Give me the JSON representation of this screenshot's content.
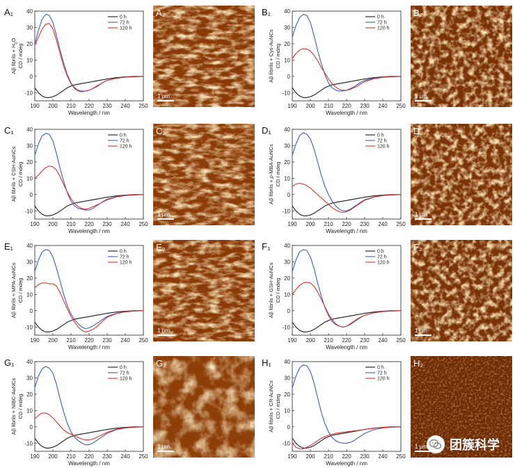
{
  "figure": {
    "xlabel": "Wavelength / nm",
    "ylabel_suffix": "CD / mdeg",
    "x_ticks": [
      190,
      200,
      210,
      220,
      230,
      240,
      250
    ],
    "y_ticks": [
      -10,
      0,
      10,
      20,
      30,
      40
    ],
    "legend": [
      "0 h",
      "72 h",
      "120 h"
    ],
    "colors": {
      "0h": "#1a1a1a",
      "72h": "#3d5fb0",
      "120h": "#e03030"
    },
    "scale_bar": "1 μm"
  },
  "chart_data": [
    {
      "type": "line",
      "panel": "A",
      "letter_cd": "A₁",
      "letter_afm": "A₂",
      "ylabel_pre": "Aβ fibrils + H",
      "ylabel_sub": "2",
      "ylabel_post": "O",
      "xlim": [
        190,
        250
      ],
      "ylim": [
        -15,
        40
      ],
      "x": [
        190,
        192,
        194,
        196,
        198,
        200,
        202,
        204,
        206,
        208,
        210,
        212,
        214,
        216,
        218,
        220,
        222,
        224,
        226,
        228,
        230,
        235,
        240,
        245,
        250
      ],
      "series": [
        {
          "name": "0 h",
          "values": [
            -7,
            -10,
            -12,
            -13,
            -13,
            -12.5,
            -11.5,
            -10,
            -8.5,
            -7,
            -6,
            -5.2,
            -4.8,
            -4.4,
            -4,
            -3.6,
            -3.2,
            -2.8,
            -2.4,
            -2,
            -1.6,
            -0.8,
            -0.3,
            0,
            0
          ]
        },
        {
          "name": "72 h",
          "values": [
            20,
            28,
            35,
            38,
            37.5,
            33,
            25,
            16,
            8,
            1,
            -4,
            -7,
            -8.5,
            -9,
            -9,
            -8.5,
            -7.5,
            -6.5,
            -5,
            -3.5,
            -2.5,
            -1.2,
            -0.5,
            -0.2,
            0
          ]
        },
        {
          "name": "120 h",
          "values": [
            19,
            24,
            29,
            32,
            32.5,
            29,
            22,
            14,
            6,
            0,
            -4.5,
            -7.5,
            -9,
            -9.5,
            -9,
            -8.5,
            -7.5,
            -6,
            -4.8,
            -3.5,
            -2.5,
            -1.2,
            -0.5,
            -0.2,
            0
          ]
        }
      ]
    },
    {
      "type": "line",
      "panel": "B",
      "letter_cd": "B₁",
      "letter_afm": "B₂",
      "ylabel_pre": "Aβ fibrils + Cys-AuNCs",
      "ylabel_sub": "",
      "ylabel_post": "",
      "xlim": [
        190,
        250
      ],
      "ylim": [
        -15,
        40
      ],
      "x": [
        190,
        192,
        194,
        196,
        198,
        200,
        202,
        204,
        206,
        208,
        210,
        212,
        214,
        216,
        218,
        220,
        222,
        224,
        226,
        228,
        230,
        235,
        240,
        245,
        250
      ],
      "series": [
        {
          "name": "0 h",
          "values": [
            -7,
            -10,
            -12,
            -13,
            -13,
            -12.5,
            -11.5,
            -10,
            -8.5,
            -7,
            -6,
            -5.2,
            -4.8,
            -4.4,
            -4,
            -3.6,
            -3.2,
            -2.8,
            -2.4,
            -2,
            -1.6,
            -0.8,
            -0.3,
            0,
            0
          ]
        },
        {
          "name": "72 h",
          "values": [
            24,
            31,
            36,
            38,
            37.5,
            33,
            25,
            16,
            8,
            1,
            -4,
            -7,
            -8.5,
            -9,
            -9,
            -8.5,
            -7.5,
            -6.5,
            -5,
            -3.5,
            -2.5,
            -1.2,
            -0.5,
            -0.2,
            0
          ]
        },
        {
          "name": "120 h",
          "values": [
            11,
            14,
            16,
            17,
            16.8,
            15.5,
            13,
            9.5,
            5.5,
            2,
            -1.5,
            -4.5,
            -6.5,
            -8,
            -8.5,
            -8.5,
            -8,
            -7,
            -6,
            -4.5,
            -3.2,
            -1.5,
            -0.6,
            -0.2,
            0
          ]
        }
      ]
    },
    {
      "type": "line",
      "panel": "C",
      "letter_cd": "C₁",
      "letter_afm": "C₂",
      "ylabel_pre": "Aβ fibrils + CSH-AuNCs",
      "ylabel_sub": "",
      "ylabel_post": "",
      "xlim": [
        190,
        250
      ],
      "ylim": [
        -15,
        40
      ],
      "x": [
        190,
        192,
        194,
        196,
        198,
        200,
        202,
        204,
        206,
        208,
        210,
        212,
        214,
        216,
        218,
        220,
        222,
        224,
        226,
        228,
        230,
        235,
        240,
        245,
        250
      ],
      "series": [
        {
          "name": "0 h",
          "values": [
            -7,
            -10,
            -12,
            -13,
            -13,
            -12.5,
            -11.5,
            -10,
            -8.5,
            -7,
            -6,
            -5.2,
            -4.8,
            -4.4,
            -4,
            -3.6,
            -3.2,
            -2.8,
            -2.4,
            -2,
            -1.6,
            -0.8,
            -0.3,
            0,
            0
          ]
        },
        {
          "name": "72 h",
          "values": [
            24,
            31,
            36,
            37.5,
            37,
            33,
            25,
            16,
            8,
            1,
            -4,
            -7,
            -8.5,
            -9,
            -9.5,
            -9.5,
            -8.5,
            -7,
            -5.5,
            -4,
            -2.8,
            -1.3,
            -0.5,
            -0.2,
            0
          ]
        },
        {
          "name": "120 h",
          "values": [
            10,
            12,
            14.5,
            16.5,
            17.5,
            17,
            15,
            11,
            6,
            1.5,
            -2.5,
            -5.5,
            -7.5,
            -8.5,
            -9,
            -8.5,
            -7.5,
            -6.5,
            -5.5,
            -4.3,
            -3.2,
            -1.5,
            -0.6,
            -0.2,
            0
          ]
        }
      ]
    },
    {
      "type": "line",
      "panel": "D",
      "letter_cd": "D₁",
      "letter_afm": "D₂",
      "ylabel_pre": "Aβ fibrils + ",
      "ylabel_italic": "p",
      "ylabel_post": "-MBA-AuNCs",
      "ylabel_sub": "",
      "xlim": [
        190,
        250
      ],
      "ylim": [
        -15,
        40
      ],
      "x": [
        190,
        192,
        194,
        196,
        198,
        200,
        202,
        204,
        206,
        208,
        210,
        212,
        214,
        216,
        218,
        220,
        222,
        224,
        226,
        228,
        230,
        235,
        240,
        245,
        250
      ],
      "series": [
        {
          "name": "0 h",
          "values": [
            -7,
            -10,
            -12,
            -13,
            -13,
            -12.5,
            -11.5,
            -10,
            -8.5,
            -7,
            -6,
            -5.2,
            -4.8,
            -4.4,
            -4,
            -3.6,
            -3.2,
            -2.8,
            -2.4,
            -2,
            -1.6,
            -0.8,
            -0.3,
            0,
            0
          ]
        },
        {
          "name": "72 h",
          "values": [
            24,
            31,
            36,
            38,
            37,
            34,
            28,
            20,
            12,
            5,
            0,
            -4,
            -7,
            -9,
            -10,
            -10,
            -9,
            -7.5,
            -6,
            -4.5,
            -3.2,
            -1.5,
            -0.6,
            -0.2,
            0
          ]
        },
        {
          "name": "120 h",
          "values": [
            5,
            6.5,
            7,
            6.5,
            5.5,
            4,
            2,
            0,
            -2,
            -4,
            -6,
            -8,
            -9.5,
            -10.5,
            -11,
            -10.5,
            -9.5,
            -8,
            -6.5,
            -5,
            -3.5,
            -1.6,
            -0.6,
            -0.2,
            0
          ]
        }
      ]
    },
    {
      "type": "line",
      "panel": "E",
      "letter_cd": "E₁",
      "letter_afm": "E₂",
      "ylabel_pre": "Aβ fibrils + MPA-AuNCs",
      "ylabel_sub": "",
      "ylabel_post": "",
      "xlim": [
        190,
        250
      ],
      "ylim": [
        -15,
        40
      ],
      "x": [
        190,
        192,
        194,
        196,
        198,
        200,
        202,
        204,
        206,
        208,
        210,
        212,
        214,
        216,
        218,
        220,
        222,
        224,
        226,
        228,
        230,
        235,
        240,
        245,
        250
      ],
      "series": [
        {
          "name": "0 h",
          "values": [
            -7,
            -10,
            -12,
            -13,
            -13,
            -12.5,
            -11.5,
            -10,
            -8.5,
            -7,
            -6,
            -5.2,
            -4.8,
            -4.4,
            -4,
            -3.6,
            -3.2,
            -2.8,
            -2.4,
            -2,
            -1.6,
            -0.8,
            -0.3,
            0,
            0
          ]
        },
        {
          "name": "72 h",
          "values": [
            24,
            31,
            36,
            37.5,
            37,
            33,
            26,
            18,
            10,
            3,
            -2,
            -5.5,
            -8,
            -10,
            -11,
            -10.5,
            -9.5,
            -8,
            -6.5,
            -5,
            -3.5,
            -1.6,
            -0.6,
            -0.2,
            0
          ]
        },
        {
          "name": "120 h",
          "values": [
            14,
            16,
            17,
            17,
            16.5,
            16.5,
            15,
            11,
            6,
            1,
            -3.5,
            -7,
            -10,
            -12,
            -13,
            -12.5,
            -11.5,
            -10,
            -8,
            -6,
            -4,
            -1.8,
            -0.7,
            -0.2,
            0
          ]
        }
      ]
    },
    {
      "type": "line",
      "panel": "F",
      "letter_cd": "F₁",
      "letter_afm": "F₂",
      "ylabel_pre": "Aβ fibrils + GSH-AuNCs",
      "ylabel_sub": "",
      "ylabel_post": "",
      "xlim": [
        190,
        250
      ],
      "ylim": [
        -15,
        40
      ],
      "x": [
        190,
        192,
        194,
        196,
        198,
        200,
        202,
        204,
        206,
        208,
        210,
        212,
        214,
        216,
        218,
        220,
        222,
        224,
        226,
        228,
        230,
        235,
        240,
        245,
        250
      ],
      "series": [
        {
          "name": "0 h",
          "values": [
            -7,
            -10,
            -12,
            -13,
            -13,
            -12.5,
            -11.5,
            -10,
            -8.5,
            -7,
            -6,
            -5.2,
            -4.8,
            -4.4,
            -4,
            -3.6,
            -3.2,
            -2.8,
            -2.4,
            -2,
            -1.6,
            -0.8,
            -0.3,
            0,
            0
          ]
        },
        {
          "name": "72 h",
          "values": [
            24,
            31,
            36,
            37.5,
            37,
            33,
            26,
            17,
            9,
            2,
            -3,
            -6.5,
            -8.5,
            -9.5,
            -10,
            -9.5,
            -8.5,
            -7,
            -5.5,
            -4,
            -2.8,
            -1.3,
            -0.5,
            -0.2,
            0
          ]
        },
        {
          "name": "120 h",
          "values": [
            10,
            13,
            15.5,
            17,
            17.5,
            17,
            15,
            11.5,
            7,
            2.5,
            -2,
            -5.5,
            -8,
            -9.5,
            -10,
            -9.5,
            -8,
            -6.5,
            -5,
            -3.8,
            -2.8,
            -1.3,
            -0.5,
            -0.2,
            0
          ]
        }
      ]
    },
    {
      "type": "line",
      "panel": "G",
      "letter_cd": "G₁",
      "letter_afm": "G₂",
      "ylabel_pre": "Aβ fibrils + NIBC-AuNCs",
      "ylabel_sub": "",
      "ylabel_post": "",
      "xlim": [
        190,
        250
      ],
      "ylim": [
        -15,
        40
      ],
      "x": [
        190,
        192,
        194,
        196,
        198,
        200,
        202,
        204,
        206,
        208,
        210,
        212,
        214,
        216,
        218,
        220,
        222,
        224,
        226,
        228,
        230,
        235,
        240,
        245,
        250
      ],
      "series": [
        {
          "name": "0 h",
          "values": [
            -7,
            -10,
            -12,
            -13,
            -13,
            -12.5,
            -11.5,
            -10,
            -8.5,
            -7,
            -6,
            -5.2,
            -4.8,
            -4.4,
            -4,
            -3.6,
            -3.2,
            -2.8,
            -2.4,
            -2,
            -1.6,
            -0.8,
            -0.3,
            0,
            0
          ]
        },
        {
          "name": "72 h",
          "values": [
            24,
            31,
            35.5,
            37,
            36,
            33,
            26,
            17,
            9,
            2,
            -3,
            -6.5,
            -8.5,
            -10,
            -11,
            -11,
            -10,
            -8.5,
            -7,
            -5.5,
            -4,
            -1.8,
            -0.7,
            -0.2,
            0
          ]
        },
        {
          "name": "120 h",
          "values": [
            5,
            7,
            8.5,
            8.5,
            7.5,
            5.5,
            3,
            0.5,
            -2,
            -3.5,
            -4.5,
            -5.5,
            -6.5,
            -7.5,
            -8,
            -8,
            -7.5,
            -6.5,
            -5.5,
            -4.5,
            -3.3,
            -1.5,
            -0.6,
            -0.2,
            0
          ]
        }
      ]
    },
    {
      "type": "line",
      "panel": "H",
      "letter_cd": "H₁",
      "letter_afm": "H₂",
      "ylabel_pre": "Aβ fibrils + CR-AuNCs",
      "ylabel_sub": "",
      "ylabel_post": "",
      "xlim": [
        190,
        250
      ],
      "ylim": [
        -15,
        40
      ],
      "x": [
        190,
        192,
        194,
        196,
        198,
        200,
        202,
        204,
        206,
        208,
        210,
        212,
        214,
        216,
        218,
        220,
        222,
        224,
        226,
        228,
        230,
        235,
        240,
        245,
        250
      ],
      "series": [
        {
          "name": "0 h",
          "values": [
            -7,
            -10,
            -12,
            -13,
            -13,
            -12.5,
            -11.5,
            -10,
            -8.5,
            -7,
            -6,
            -5.2,
            -4.8,
            -4.4,
            -4,
            -3.6,
            -3.2,
            -2.8,
            -2.4,
            -2,
            -1.6,
            -0.8,
            -0.3,
            0,
            0
          ]
        },
        {
          "name": "72 h",
          "values": [
            24,
            31,
            36,
            38,
            37.5,
            34,
            27,
            18,
            9,
            2,
            -3,
            -6.5,
            -8.5,
            -9.5,
            -10,
            -10,
            -9.5,
            -8.5,
            -7,
            -5.5,
            -4,
            -1.8,
            -0.7,
            -0.2,
            0
          ]
        },
        {
          "name": "120 h",
          "values": [
            -10,
            -12.5,
            -13.5,
            -13.5,
            -12.5,
            -11.5,
            -10,
            -8.5,
            -7,
            -6,
            -5.2,
            -4.5,
            -4,
            -3.6,
            -3.3,
            -3,
            -2.8,
            -2.5,
            -2.2,
            -1.9,
            -1.6,
            -0.9,
            -0.4,
            -0.1,
            0
          ]
        }
      ]
    }
  ],
  "watermark": {
    "text": "团簇科学",
    "icon": "wechat-logo-icon"
  }
}
